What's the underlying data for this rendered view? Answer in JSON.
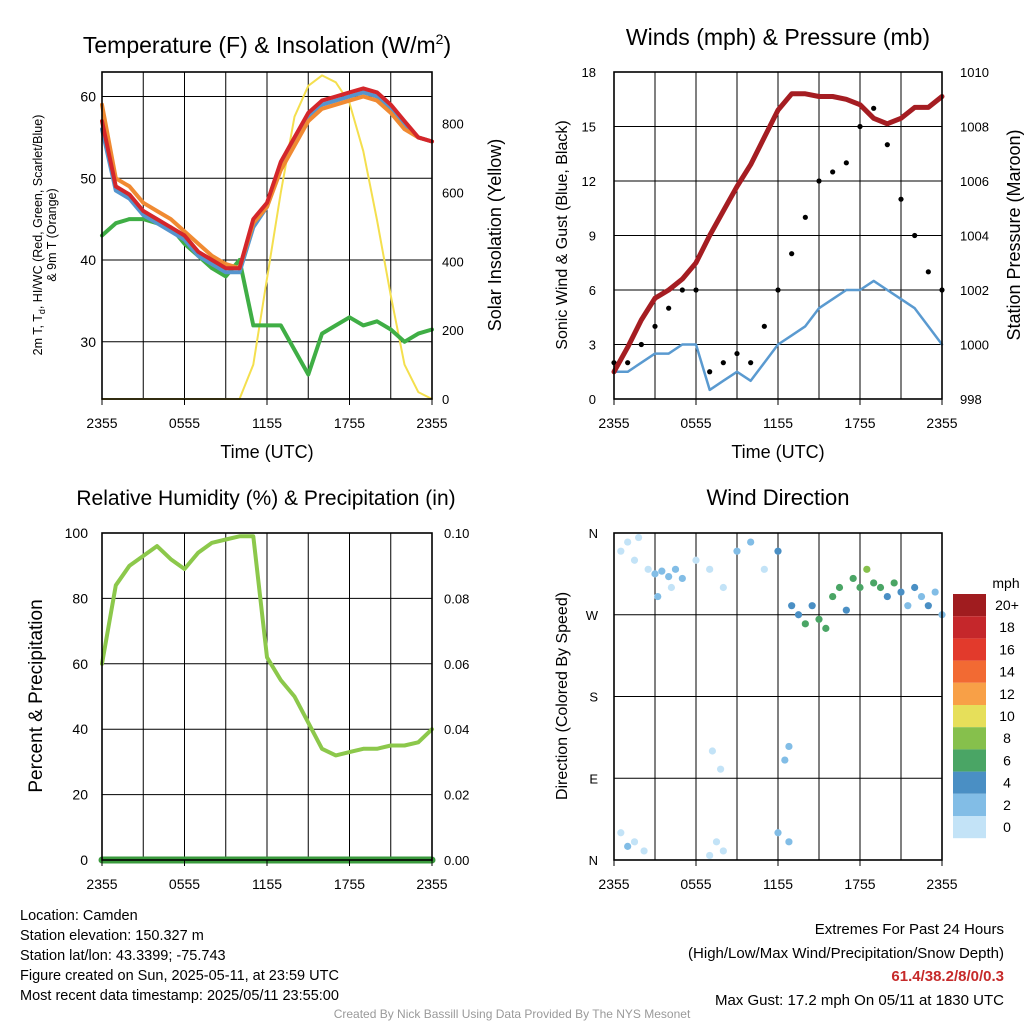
{
  "temp": {
    "title_prefix": "Temperature (F) & Insolation (W/m",
    "title_sup": "2",
    "title_suffix": ")",
    "ylabel_line1": "2m T, T",
    "ylabel_sub": "d",
    "ylabel_line1_rest": ", HI/WC (Red, Green, Scarlet/Blue)",
    "ylabel_line2": "& 9m T (Orange)",
    "y2label": "Solar Insolation (Yellow)",
    "xlabel": "Time (UTC)",
    "xticks": [
      "2355",
      "0555",
      "1155",
      "1755",
      "2355"
    ],
    "yticks": [
      "30",
      "40",
      "50",
      "60"
    ],
    "y2ticks": [
      "0",
      "200",
      "400",
      "600",
      "800"
    ]
  },
  "wind": {
    "title": "Winds (mph) & Pressure (mb)",
    "ylabel": "Sonic Wind & Gust (Blue, Black)",
    "y2label": "Station Pressure (Maroon)",
    "xlabel": "Time (UTC)",
    "xticks": [
      "2355",
      "0555",
      "1155",
      "1755",
      "2355"
    ],
    "yticks": [
      "0",
      "3",
      "6",
      "9",
      "12",
      "15",
      "18"
    ],
    "y2ticks": [
      "998",
      "1000",
      "1002",
      "1004",
      "1006",
      "1008",
      "1010"
    ]
  },
  "rh": {
    "title": "Relative Humidity (%) & Precipitation (in)",
    "ylabel": "Percent & Precipitation",
    "xticks": [
      "2355",
      "0555",
      "1155",
      "1755",
      "2355"
    ],
    "yticks": [
      "0",
      "20",
      "40",
      "60",
      "80",
      "100"
    ],
    "y2ticks": [
      "0.00",
      "0.02",
      "0.04",
      "0.06",
      "0.08",
      "0.10"
    ]
  },
  "wdir": {
    "title": "Wind Direction",
    "ylabel": "Direction (Colored By Speed)",
    "xticks": [
      "2355",
      "0555",
      "1155",
      "1755",
      "2355"
    ],
    "yticks": [
      "N",
      "E",
      "S",
      "W",
      "N"
    ],
    "legend_title": "mph",
    "legend_labels": [
      "20+",
      "18",
      "16",
      "14",
      "12",
      "10",
      "8",
      "6",
      "4",
      "2",
      "0"
    ],
    "legend_colors": [
      "#a01c1f",
      "#c5272b",
      "#e23a2c",
      "#f26a33",
      "#f8a047",
      "#e6df5a",
      "#86c04c",
      "#4aa565",
      "#4a8fc4",
      "#82bde6",
      "#c3e3f7"
    ]
  },
  "colors": {
    "temp": "#d4262b",
    "hiwc": "#5595ce",
    "temp9m": "#f08a32",
    "dewpoint": "#3fae45",
    "solar": "#f4df4e",
    "wind": "#5a9ad0",
    "gust": "#000000",
    "pressure": "#a51d22",
    "rh": "#8cc84b",
    "precip": "#3a9a3d"
  },
  "info": {
    "location": "Location: Camden",
    "elevation": "Station elevation: 150.327 m",
    "latlon": "Station lat/lon: 43.3399; -75.743",
    "created": "Figure created on Sun, 2025-05-11, at 23:59 UTC",
    "recent": "Most recent data timestamp: 2025/05/11 23:55:00",
    "extremes_title": "Extremes For Past 24 Hours",
    "extremes_legend": "(High/Low/Max Wind/Precipitation/Snow Depth)",
    "extremes_values": "61.4/38.2/8/0/0.3",
    "max_gust": "Max Gust: 17.2 mph On 05/11 at 1830 UTC",
    "credit": "Created By Nick Bassill Using Data Provided By The NYS Mesonet"
  },
  "chart_data": [
    {
      "type": "line",
      "title": "Temperature (F) & Insolation (W/m2)",
      "xlabel": "Time (UTC)",
      "x": [
        0,
        1,
        2,
        3,
        4,
        5,
        6,
        7,
        8,
        9,
        10,
        11,
        12,
        13,
        14,
        15,
        16,
        17,
        18,
        19,
        20,
        21,
        22,
        23,
        24
      ],
      "ylim": [
        23,
        63
      ],
      "y2lim": [
        0,
        950
      ],
      "series": [
        {
          "name": "2m T",
          "axis": "left",
          "values": [
            57,
            49,
            48,
            46,
            45,
            44,
            43,
            41,
            40,
            39,
            39,
            45,
            47,
            52,
            55,
            58,
            59.5,
            60,
            60.5,
            61,
            60.5,
            59,
            57,
            55,
            54.5
          ]
        },
        {
          "name": "Td",
          "axis": "left",
          "values": [
            43,
            44.5,
            45,
            45,
            44.5,
            44,
            42,
            40.5,
            39,
            38,
            40,
            32,
            32,
            32,
            29,
            26,
            31,
            32,
            33,
            32,
            32.5,
            31.5,
            30,
            31,
            31.5
          ]
        },
        {
          "name": "9m T",
          "axis": "left",
          "values": [
            59,
            50,
            49,
            47,
            46,
            45,
            43.5,
            42,
            40.5,
            39.5,
            39,
            44.5,
            46.5,
            51,
            54,
            57,
            58.5,
            59,
            59.5,
            60,
            59.5,
            58,
            56,
            55,
            54.5
          ]
        },
        {
          "name": "HI/WC",
          "axis": "left",
          "values": [
            56,
            48.5,
            47.5,
            45.5,
            44.5,
            43.5,
            42.5,
            40.5,
            39.5,
            38.5,
            38.5,
            44,
            46.5,
            51.5,
            54.5,
            57.5,
            59,
            59.5,
            60,
            60.5,
            60,
            58.5,
            56.5,
            55,
            54.5
          ]
        },
        {
          "name": "Solar Insolation",
          "axis": "right",
          "values": [
            0,
            0,
            0,
            0,
            0,
            0,
            0,
            0,
            0,
            0,
            0,
            100,
            350,
            600,
            820,
            910,
            940,
            920,
            860,
            720,
            520,
            300,
            100,
            20,
            0
          ]
        }
      ]
    },
    {
      "type": "line",
      "title": "Winds (mph) & Pressure (mb)",
      "xlabel": "Time (UTC)",
      "x": [
        0,
        1,
        2,
        3,
        4,
        5,
        6,
        7,
        8,
        9,
        10,
        11,
        12,
        13,
        14,
        15,
        16,
        17,
        18,
        19,
        20,
        21,
        22,
        23,
        24
      ],
      "ylim": [
        0,
        18
      ],
      "y2lim": [
        998,
        1010
      ],
      "series": [
        {
          "name": "Sonic Wind",
          "axis": "left",
          "values": [
            1.5,
            1.5,
            2,
            2.5,
            2.5,
            3,
            3,
            0.5,
            1,
            1.5,
            1,
            2,
            3,
            3.5,
            4,
            5,
            5.5,
            6,
            6,
            6.5,
            6,
            5.5,
            5,
            4,
            3
          ]
        },
        {
          "name": "Gust",
          "axis": "left",
          "values": [
            2,
            2,
            3,
            4,
            5,
            6,
            6,
            1.5,
            2,
            2.5,
            2,
            4,
            6,
            8,
            10,
            12,
            12.5,
            13,
            15,
            16,
            14,
            11,
            9,
            7,
            6
          ]
        },
        {
          "name": "Station Pressure",
          "axis": "right",
          "values": [
            999.0,
            999.9,
            1000.9,
            1001.7,
            1002.0,
            1002.4,
            1003.0,
            1004.0,
            1004.9,
            1005.8,
            1006.6,
            1007.6,
            1008.6,
            1009.2,
            1009.2,
            1009.1,
            1009.1,
            1009.0,
            1008.8,
            1008.3,
            1008.1,
            1008.3,
            1008.7,
            1008.7,
            1009.1
          ]
        }
      ]
    },
    {
      "type": "line",
      "title": "Relative Humidity (%) & Precipitation (in)",
      "x": [
        0,
        1,
        2,
        3,
        4,
        5,
        6,
        7,
        8,
        9,
        10,
        11,
        12,
        13,
        14,
        15,
        16,
        17,
        18,
        19,
        20,
        21,
        22,
        23,
        24
      ],
      "ylim": [
        0,
        100
      ],
      "y2lim": [
        0,
        0.1
      ],
      "series": [
        {
          "name": "RH",
          "axis": "left",
          "values": [
            60,
            84,
            90,
            93,
            96,
            92,
            89,
            94,
            97,
            98,
            99,
            99,
            62,
            55,
            50,
            42,
            34,
            32,
            33,
            34,
            34,
            35,
            35,
            36,
            40
          ]
        },
        {
          "name": "Precipitation",
          "axis": "right",
          "values": [
            0,
            0,
            0,
            0,
            0,
            0,
            0,
            0,
            0,
            0,
            0,
            0,
            0,
            0,
            0,
            0,
            0,
            0,
            0,
            0,
            0,
            0,
            0,
            0,
            0
          ]
        }
      ]
    },
    {
      "type": "scatter",
      "title": "Wind Direction",
      "ylim": [
        0,
        360
      ],
      "points": [
        {
          "x": 0.5,
          "y": 340,
          "speed": 1
        },
        {
          "x": 1.0,
          "y": 350,
          "speed": 0.5
        },
        {
          "x": 1.5,
          "y": 330,
          "speed": 1.5
        },
        {
          "x": 1.8,
          "y": 355,
          "speed": 0.5
        },
        {
          "x": 2.5,
          "y": 320,
          "speed": 1.5
        },
        {
          "x": 3.0,
          "y": 315,
          "speed": 2.5
        },
        {
          "x": 3.5,
          "y": 318,
          "speed": 3
        },
        {
          "x": 4.0,
          "y": 312,
          "speed": 3.5
        },
        {
          "x": 4.5,
          "y": 320,
          "speed": 2.5
        },
        {
          "x": 5.0,
          "y": 310,
          "speed": 3
        },
        {
          "x": 3.2,
          "y": 290,
          "speed": 2
        },
        {
          "x": 4.2,
          "y": 300,
          "speed": 1.5
        },
        {
          "x": 6.0,
          "y": 330,
          "speed": 1
        },
        {
          "x": 7.0,
          "y": 320,
          "speed": 1.5
        },
        {
          "x": 8.0,
          "y": 300,
          "speed": 0.5
        },
        {
          "x": 9.0,
          "y": 340,
          "speed": 2
        },
        {
          "x": 10.0,
          "y": 350,
          "speed": 3.5
        },
        {
          "x": 11.0,
          "y": 320,
          "speed": 1
        },
        {
          "x": 12.0,
          "y": 340,
          "speed": 4
        },
        {
          "x": 13.0,
          "y": 280,
          "speed": 4
        },
        {
          "x": 13.5,
          "y": 270,
          "speed": 5
        },
        {
          "x": 14.0,
          "y": 260,
          "speed": 6
        },
        {
          "x": 14.5,
          "y": 280,
          "speed": 5.5
        },
        {
          "x": 15.0,
          "y": 265,
          "speed": 6.5
        },
        {
          "x": 15.5,
          "y": 255,
          "speed": 7
        },
        {
          "x": 16.0,
          "y": 290,
          "speed": 6
        },
        {
          "x": 16.5,
          "y": 300,
          "speed": 6.5
        },
        {
          "x": 17.0,
          "y": 275,
          "speed": 5
        },
        {
          "x": 17.5,
          "y": 310,
          "speed": 7
        },
        {
          "x": 18.0,
          "y": 300,
          "speed": 6.5
        },
        {
          "x": 18.5,
          "y": 320,
          "speed": 8
        },
        {
          "x": 19.0,
          "y": 305,
          "speed": 6
        },
        {
          "x": 19.5,
          "y": 300,
          "speed": 6.5
        },
        {
          "x": 20.0,
          "y": 290,
          "speed": 5
        },
        {
          "x": 20.5,
          "y": 305,
          "speed": 6
        },
        {
          "x": 21.0,
          "y": 295,
          "speed": 5
        },
        {
          "x": 21.5,
          "y": 280,
          "speed": 3.5
        },
        {
          "x": 22.0,
          "y": 300,
          "speed": 4
        },
        {
          "x": 22.5,
          "y": 290,
          "speed": 3
        },
        {
          "x": 23.0,
          "y": 280,
          "speed": 4
        },
        {
          "x": 23.5,
          "y": 295,
          "speed": 2.5
        },
        {
          "x": 24.0,
          "y": 270,
          "speed": 3
        },
        {
          "x": 0.5,
          "y": 30,
          "speed": 0.5
        },
        {
          "x": 1.0,
          "y": 15,
          "speed": 2
        },
        {
          "x": 1.5,
          "y": 20,
          "speed": 0.5
        },
        {
          "x": 2.2,
          "y": 10,
          "speed": 0.5
        },
        {
          "x": 7.0,
          "y": 5,
          "speed": 0.5
        },
        {
          "x": 7.5,
          "y": 20,
          "speed": 1
        },
        {
          "x": 8.0,
          "y": 10,
          "speed": 0.5
        },
        {
          "x": 7.2,
          "y": 120,
          "speed": 0.5
        },
        {
          "x": 7.8,
          "y": 100,
          "speed": 0.5
        },
        {
          "x": 12.0,
          "y": 30,
          "speed": 2.5
        },
        {
          "x": 12.8,
          "y": 20,
          "speed": 3.5
        },
        {
          "x": 12.5,
          "y": 110,
          "speed": 2
        },
        {
          "x": 12.8,
          "y": 125,
          "speed": 3
        }
      ]
    }
  ]
}
